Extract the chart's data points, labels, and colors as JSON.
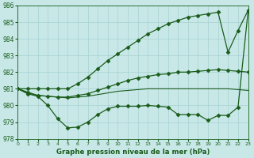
{
  "x": [
    0,
    1,
    2,
    3,
    4,
    5,
    6,
    7,
    8,
    9,
    10,
    11,
    12,
    13,
    14,
    15,
    16,
    17,
    18,
    19,
    20,
    21,
    22,
    23
  ],
  "line_top": [
    981.0,
    981.0,
    981.0,
    981.0,
    981.0,
    981.0,
    981.3,
    981.7,
    982.2,
    982.7,
    983.1,
    983.5,
    983.9,
    984.3,
    984.6,
    984.9,
    985.1,
    985.3,
    985.4,
    985.5,
    985.6,
    983.2,
    984.5,
    985.7
  ],
  "line_mid_upper": [
    981.0,
    980.8,
    980.6,
    980.55,
    980.5,
    980.5,
    980.6,
    980.7,
    980.9,
    981.1,
    981.3,
    981.5,
    981.65,
    981.75,
    981.85,
    981.9,
    982.0,
    982.0,
    982.05,
    982.1,
    982.15,
    982.1,
    982.05,
    982.0
  ],
  "line_mid_flat": [
    981.0,
    980.75,
    980.6,
    980.55,
    980.5,
    980.45,
    980.5,
    980.55,
    980.65,
    980.75,
    980.85,
    980.9,
    980.95,
    981.0,
    981.0,
    981.0,
    981.0,
    981.0,
    981.0,
    981.0,
    981.0,
    981.0,
    980.95,
    980.9
  ],
  "line_bot": [
    981.0,
    980.7,
    980.55,
    980.0,
    979.2,
    978.65,
    978.7,
    979.0,
    979.45,
    979.8,
    979.95,
    979.95,
    979.95,
    980.0,
    979.95,
    979.9,
    979.45,
    979.45,
    979.45,
    979.1,
    979.4,
    979.4,
    979.9,
    985.65
  ],
  "bg_color": "#c8e8e8",
  "grid_color": "#a8d0d0",
  "line_color": "#1a5c1a",
  "xlabel": "Graphe pression niveau de la mer (hPa)",
  "ylim": [
    978.0,
    986.0
  ],
  "xlim": [
    0,
    23
  ],
  "yticks": [
    978,
    979,
    980,
    981,
    982,
    983,
    984,
    985,
    986
  ],
  "xticks": [
    0,
    1,
    2,
    3,
    4,
    5,
    6,
    7,
    8,
    9,
    10,
    11,
    12,
    13,
    14,
    15,
    16,
    17,
    18,
    19,
    20,
    21,
    22,
    23
  ]
}
